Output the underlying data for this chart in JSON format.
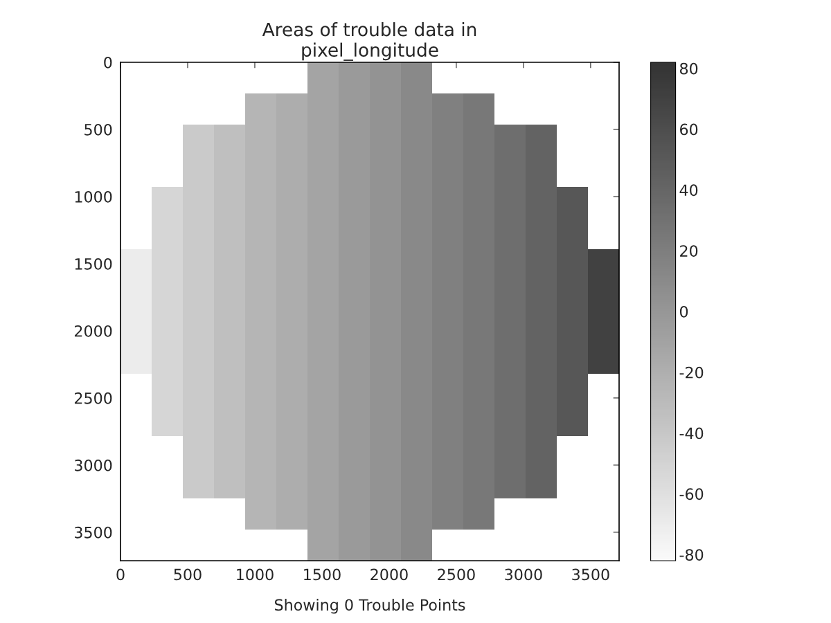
{
  "chart_data": {
    "type": "heatmap",
    "title": "Areas of trouble data in\npixel_longitude",
    "x": [
      116,
      348,
      580,
      812,
      1044,
      1276,
      1508,
      1740,
      1972,
      2204,
      2436,
      2668,
      2900,
      3132,
      3364,
      3596
    ],
    "y": [
      116,
      348,
      580,
      812,
      1044,
      1276,
      1508,
      1740,
      1972,
      2204,
      2436,
      2668,
      2900,
      3132,
      3364,
      3596
    ],
    "cells": [
      [
        null,
        null,
        null,
        null,
        null,
        null,
        -11,
        -3,
        3,
        11,
        null,
        null,
        null,
        null,
        null,
        null
      ],
      [
        null,
        null,
        null,
        null,
        -25,
        -18,
        -11,
        -3,
        3,
        11,
        18,
        25,
        null,
        null,
        null,
        null
      ],
      [
        null,
        null,
        -42,
        -33,
        -25,
        -18,
        -11,
        -3,
        3,
        11,
        18,
        25,
        33,
        42,
        null,
        null
      ],
      [
        null,
        null,
        -42,
        -33,
        -25,
        -18,
        -11,
        -3,
        3,
        11,
        18,
        25,
        33,
        42,
        null,
        null
      ],
      [
        null,
        -52,
        -42,
        -33,
        -25,
        -18,
        -11,
        -3,
        3,
        11,
        18,
        25,
        33,
        42,
        52,
        null
      ],
      [
        null,
        -52,
        -42,
        -33,
        -25,
        -18,
        -11,
        -3,
        3,
        11,
        18,
        25,
        33,
        42,
        52,
        null
      ],
      [
        -70,
        -52,
        -42,
        -33,
        -25,
        -18,
        -11,
        -3,
        3,
        11,
        18,
        25,
        33,
        42,
        52,
        70
      ],
      [
        -70,
        -52,
        -42,
        -33,
        -25,
        -18,
        -11,
        -3,
        3,
        11,
        18,
        25,
        33,
        42,
        52,
        70
      ],
      [
        -70,
        -52,
        -42,
        -33,
        -25,
        -18,
        -11,
        -3,
        3,
        11,
        18,
        25,
        33,
        42,
        52,
        70
      ],
      [
        -70,
        -52,
        -42,
        -33,
        -25,
        -18,
        -11,
        -3,
        3,
        11,
        18,
        25,
        33,
        42,
        52,
        70
      ],
      [
        null,
        -52,
        -42,
        -33,
        -25,
        -18,
        -11,
        -3,
        3,
        11,
        18,
        25,
        33,
        42,
        52,
        null
      ],
      [
        null,
        -52,
        -42,
        -33,
        -25,
        -18,
        -11,
        -3,
        3,
        11,
        18,
        25,
        33,
        42,
        52,
        null
      ],
      [
        null,
        null,
        -42,
        -33,
        -25,
        -18,
        -11,
        -3,
        3,
        11,
        18,
        25,
        33,
        42,
        null,
        null
      ],
      [
        null,
        null,
        -42,
        -33,
        -25,
        -18,
        -11,
        -3,
        3,
        11,
        18,
        25,
        33,
        42,
        null,
        null
      ],
      [
        null,
        null,
        null,
        null,
        -25,
        -18,
        -11,
        -3,
        3,
        11,
        18,
        25,
        null,
        null,
        null,
        null
      ],
      [
        null,
        null,
        null,
        null,
        null,
        null,
        -11,
        -3,
        3,
        11,
        null,
        null,
        null,
        null,
        null,
        null
      ]
    ],
    "xlim": [
      0,
      3712
    ],
    "ylim": [
      3712,
      0
    ],
    "xticks": [
      0,
      500,
      1000,
      1500,
      2000,
      2500,
      3000,
      3500
    ],
    "yticks": [
      0,
      500,
      1000,
      1500,
      2000,
      2500,
      3000,
      3500
    ],
    "clim": [
      -82,
      82
    ],
    "cticks": [
      {
        "value": -80,
        "label": "-80"
      },
      {
        "value": -60,
        "label": "-60"
      },
      {
        "value": -40,
        "label": "-40"
      },
      {
        "value": -20,
        "label": "-20"
      },
      0,
      20,
      40,
      60,
      80
    ],
    "grid": false,
    "annotations": [
      "Showing 0 Trouble Points"
    ]
  }
}
